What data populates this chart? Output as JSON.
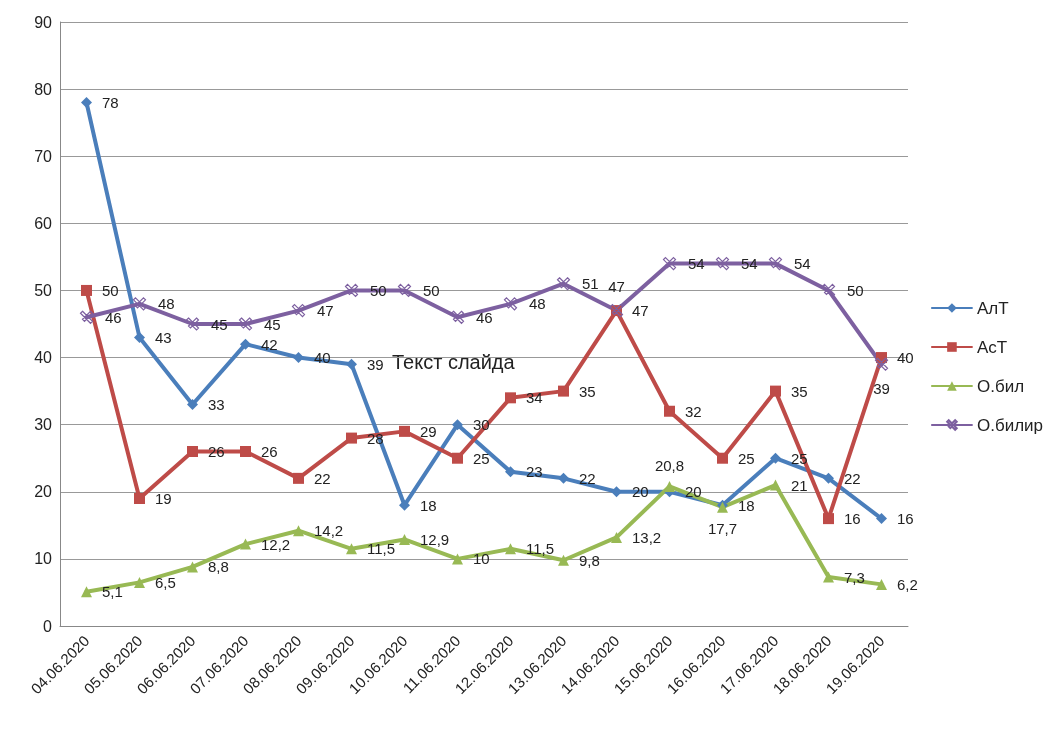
{
  "chart_data": {
    "type": "line",
    "categories": [
      "04.06.2020",
      "05.06.2020",
      "06.06.2020",
      "07.06.2020",
      "08.06.2020",
      "09.06.2020",
      "10.06.2020",
      "11.06.2020",
      "12.06.2020",
      "13.06.2020",
      "14.06.2020",
      "15.06.2020",
      "16.06.2020",
      "17.06.2020",
      "18.06.2020",
      "19.06.2020"
    ],
    "series": [
      {
        "name": "АлТ",
        "color": "#4a7ebb",
        "marker": "diamond",
        "values": [
          78,
          43,
          33,
          42,
          40,
          39,
          18,
          30,
          23,
          22,
          20,
          20,
          18,
          25,
          22,
          16
        ],
        "value_labels": [
          "78",
          "43",
          "33",
          "42",
          "40",
          "39",
          "18",
          "30",
          "23",
          "22",
          "20",
          "20",
          "18",
          "25",
          "22",
          "16"
        ]
      },
      {
        "name": "АсТ",
        "color": "#be4b48",
        "marker": "square",
        "values": [
          50,
          19,
          26,
          26,
          22,
          28,
          29,
          25,
          34,
          35,
          47,
          32,
          25,
          35,
          16,
          40
        ],
        "value_labels": [
          "50",
          "19",
          "26",
          "26",
          "22",
          "28",
          "29",
          "25",
          "34",
          "35",
          "47",
          "32",
          "25",
          "35",
          "16",
          "40"
        ]
      },
      {
        "name": "О.бил",
        "color": "#98b954",
        "marker": "triangle",
        "values": [
          5.1,
          6.5,
          8.8,
          12.2,
          14.2,
          11.5,
          12.9,
          10,
          11.5,
          9.8,
          13.2,
          20.8,
          17.7,
          21,
          7.3,
          6.2
        ],
        "value_labels": [
          "5,1",
          "6,5",
          "8,8",
          "12,2",
          "14,2",
          "11,5",
          "12,9",
          "10",
          "11,5",
          "9,8",
          "13,2",
          "20,8",
          "17,7",
          "21",
          "7,3",
          "6,2"
        ]
      },
      {
        "name": "О.билир",
        "color": "#7d60a0",
        "marker": "cross",
        "values": [
          46,
          48,
          45,
          45,
          47,
          50,
          50,
          46,
          48,
          51,
          47,
          54,
          54,
          54,
          50,
          39
        ],
        "value_labels": [
          "46",
          "48",
          "45",
          "45",
          "47",
          "50",
          "50",
          "46",
          "48",
          "51",
          "47",
          "54",
          "54",
          "54",
          "50",
          "39"
        ]
      }
    ],
    "ylim": [
      0,
      90
    ],
    "yticks": [
      0,
      10,
      20,
      30,
      40,
      50,
      60,
      70,
      80,
      90
    ],
    "grid": "y",
    "legend": "right",
    "line_style": "solid",
    "annotations": [
      "Текст слайда"
    ]
  }
}
